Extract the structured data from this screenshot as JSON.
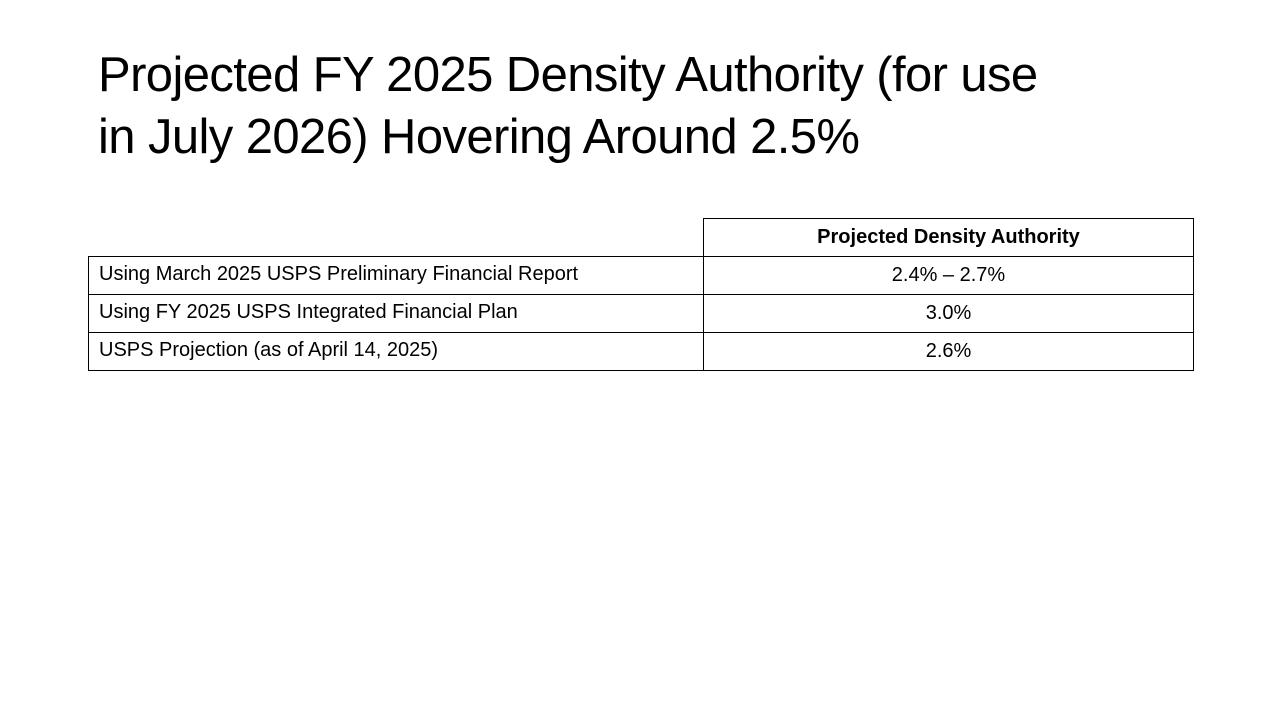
{
  "slide": {
    "title_line1": "Projected FY 2025 Density Authority (for use",
    "title_line2": "in July 2026) Hovering Around 2.5%"
  },
  "table": {
    "header": "Projected Density Authority",
    "rows": [
      {
        "label": "Using March 2025 USPS Preliminary Financial Report",
        "value": "2.4% – 2.7%"
      },
      {
        "label": "Using FY 2025 USPS Integrated Financial Plan",
        "value": "3.0%"
      },
      {
        "label": "USPS Projection (as of April 14, 2025)",
        "value": "2.6%"
      }
    ]
  }
}
